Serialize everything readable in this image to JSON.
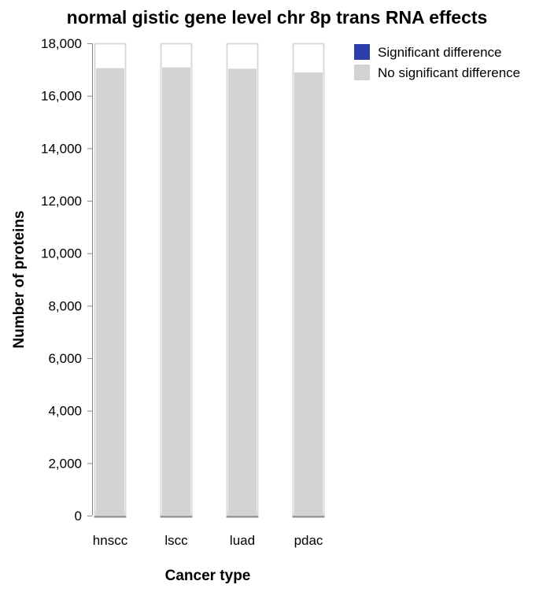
{
  "chart_data": {
    "type": "bar",
    "stacked": true,
    "title": "normal gistic gene level chr 8p trans RNA effects",
    "xlabel": "Cancer type",
    "ylabel": "Number of proteins",
    "categories": [
      "hnscc",
      "lscc",
      "luad",
      "pdac"
    ],
    "ylim": [
      0,
      18000
    ],
    "yticks": [
      0,
      2000,
      4000,
      6000,
      8000,
      10000,
      12000,
      14000,
      16000,
      18000
    ],
    "ytick_labels": [
      "0",
      "2,000",
      "4,000",
      "6,000",
      "8,000",
      "10,000",
      "12,000",
      "14,000",
      "16,000",
      "18,000"
    ],
    "series": [
      {
        "name": "Significant difference",
        "color": "#2d3ea8",
        "values": [
          0,
          0,
          0,
          0
        ]
      },
      {
        "name": "No significant difference",
        "color": "#d3d3d3",
        "values": [
          17050,
          17080,
          17030,
          16890
        ]
      }
    ],
    "legend": [
      {
        "label": "Significant difference",
        "color": "#2d3ea8"
      },
      {
        "label": "No significant difference",
        "color": "#d3d3d3"
      }
    ],
    "legend_position": "top-right",
    "grid": false
  }
}
